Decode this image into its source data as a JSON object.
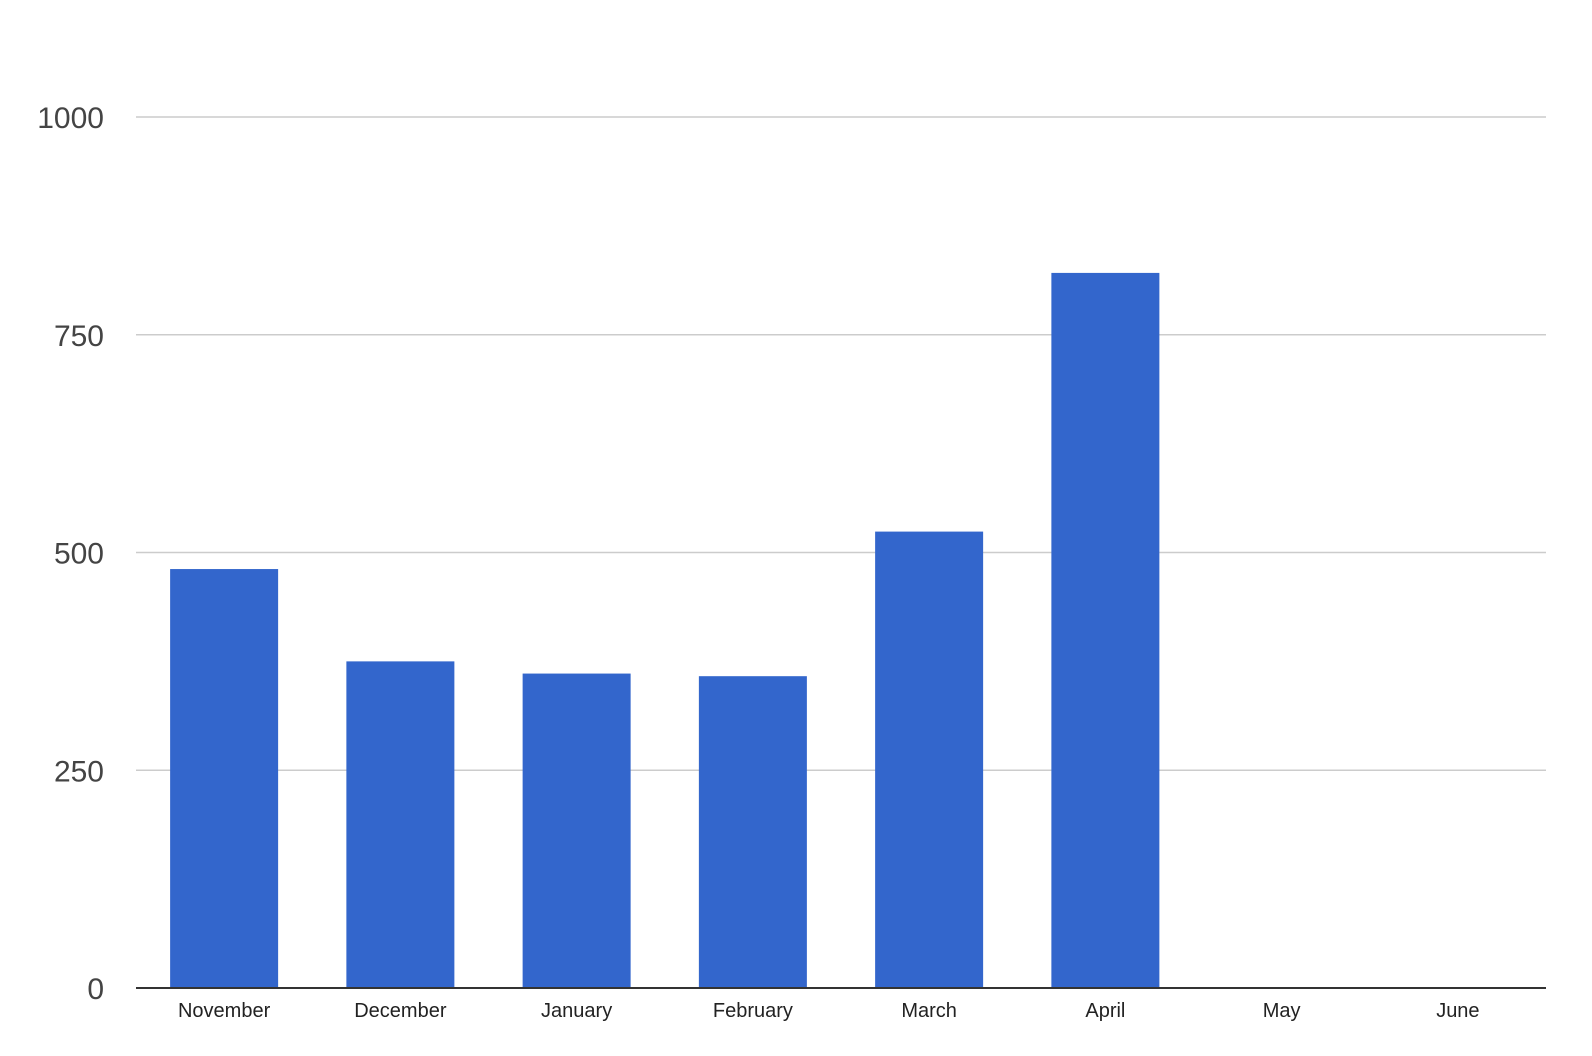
{
  "chart_data": {
    "type": "bar",
    "categories": [
      "November",
      "December",
      "January",
      "February",
      "March",
      "April",
      "May",
      "June"
    ],
    "values": [
      481,
      375,
      361,
      358,
      524,
      821,
      0,
      0
    ],
    "ylim": [
      0,
      1000
    ],
    "yticks": [
      0,
      250,
      500,
      750,
      1000
    ],
    "ytick_labels": [
      "0",
      "250",
      "500",
      "750",
      "1000"
    ],
    "grid": true,
    "legend": "none",
    "colors": {
      "bar": "#3366cc",
      "grid": "#cccccc",
      "baseline": "#333333",
      "background": "#ffffff"
    }
  }
}
